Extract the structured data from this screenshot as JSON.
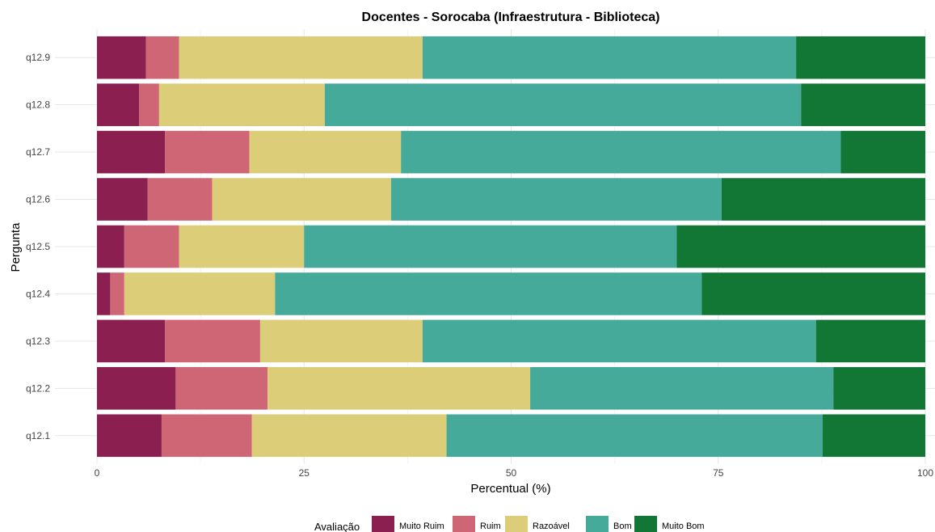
{
  "chart_data": {
    "type": "bar",
    "orientation": "horizontal",
    "stacked": true,
    "title": "Docentes - Sorocaba (Infraestrutura - Biblioteca)",
    "xlabel": "Percentual (%)",
    "ylabel": "Pergunta",
    "xlim": [
      0,
      100
    ],
    "xticks": [
      0,
      25,
      50,
      75,
      100
    ],
    "grid": true,
    "legend": {
      "title": "Avaliação",
      "position": "bottom"
    },
    "categories": [
      "q12.1",
      "q12.2",
      "q12.3",
      "q12.4",
      "q12.5",
      "q12.6",
      "q12.7",
      "q12.8",
      "q12.9"
    ],
    "series": [
      {
        "name": "Muito Ruim",
        "color": "#8b2050",
        "values": [
          7.8,
          9.5,
          8.2,
          1.6,
          3.3,
          6.1,
          8.2,
          5.1,
          5.9
        ]
      },
      {
        "name": "Ruim",
        "color": "#cf6675",
        "values": [
          10.9,
          11.1,
          11.5,
          1.7,
          6.6,
          7.8,
          10.2,
          2.4,
          4.0
        ]
      },
      {
        "name": "Razoável",
        "color": "#dccd78",
        "values": [
          23.5,
          31.7,
          19.6,
          18.2,
          15.1,
          21.6,
          18.3,
          20.0,
          29.4
        ]
      },
      {
        "name": "Bom",
        "color": "#45aa9a",
        "values": [
          45.4,
          36.6,
          47.5,
          51.5,
          45.0,
          39.9,
          53.1,
          57.5,
          45.1
        ]
      },
      {
        "name": "Muito Bom",
        "color": "#127735",
        "values": [
          12.4,
          11.1,
          13.2,
          27.0,
          30.0,
          24.6,
          10.2,
          15.0,
          15.6
        ]
      }
    ]
  }
}
